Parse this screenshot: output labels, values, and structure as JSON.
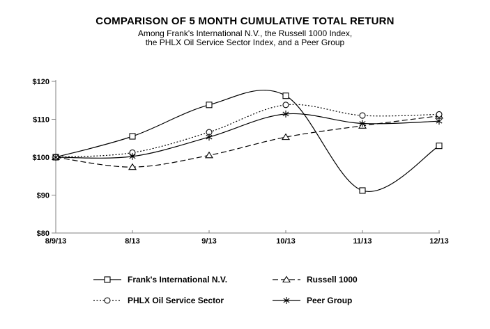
{
  "chart_data": {
    "type": "line",
    "title": "COMPARISON OF 5 MONTH CUMULATIVE TOTAL RETURN",
    "subtitle_line1": "Among Frank's International N.V., the Russell 1000 Index,",
    "subtitle_line2": "the PHLX Oil Service Sector Index, and a Peer Group",
    "categories": [
      "8/9/13",
      "8/13",
      "9/13",
      "10/13",
      "11/13",
      "12/13"
    ],
    "series": [
      {
        "name": "Frank's International N.V.",
        "marker": "square",
        "line_style": "solid",
        "values": [
          100,
          105.5,
          113.8,
          116.2,
          91.2,
          103.0
        ]
      },
      {
        "name": "Russell 1000",
        "marker": "triangle",
        "line_style": "dashed",
        "values": [
          100,
          97.4,
          100.5,
          105.3,
          108.3,
          110.9
        ]
      },
      {
        "name": "PHLX Oil Service Sector",
        "marker": "circle",
        "line_style": "dotted",
        "values": [
          100,
          101.2,
          106.6,
          113.8,
          111.0,
          111.3
        ]
      },
      {
        "name": "Peer Group",
        "marker": "star",
        "line_style": "solid",
        "values": [
          100,
          100.2,
          105.3,
          111.4,
          108.9,
          109.5
        ]
      }
    ],
    "y_ticks": [
      "$80",
      "$90",
      "$100",
      "$110",
      "$120"
    ],
    "y_tick_values": [
      80,
      90,
      100,
      110,
      120
    ],
    "ylim": [
      80,
      120
    ],
    "grid": false,
    "curve": "smooth",
    "legend_position": "bottom",
    "line_color": "#000000",
    "axis_color": "#808080",
    "background_color": "#ffffff"
  }
}
